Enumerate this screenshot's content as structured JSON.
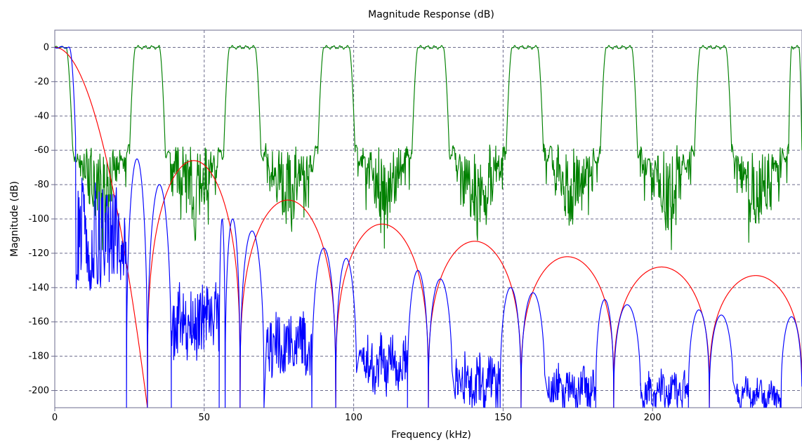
{
  "chart_data": {
    "type": "line",
    "title": "Magnitude Response (dB)",
    "xlabel": "Frequency (kHz)",
    "ylabel": "Magnitude (dB)",
    "xlim": [
      0,
      250
    ],
    "ylim": [
      -210,
      10
    ],
    "x_ticks": [
      0,
      50,
      100,
      150,
      200
    ],
    "y_ticks": [
      0,
      -20,
      -40,
      -60,
      -80,
      -100,
      -120,
      -140,
      -160,
      -180,
      -200
    ],
    "grid": true,
    "legend": "none",
    "colors": {
      "green": "#008000",
      "red": "#ff0000",
      "blue": "#0000ff",
      "grid": "#6b6b8c",
      "axes": "#6b6b8c"
    },
    "series": [
      {
        "color": "#008000",
        "description_values": "periodic bandpass images with passband at 0 dB",
        "passbands_khz": [
          [
            0,
            6
          ],
          [
            25,
            37
          ],
          [
            56.5,
            69
          ],
          [
            88,
            100.5
          ],
          [
            119.5,
            132
          ],
          [
            151,
            163.5
          ],
          [
            182.5,
            195
          ],
          [
            214,
            226.5
          ],
          [
            245.5,
            250
          ]
        ],
        "passband_level": 0,
        "stopband_floor_range": [
          -60,
          -115
        ]
      },
      {
        "color": "#ff0000",
        "lobe_peaks": [
          {
            "x": 0,
            "y": 0
          },
          {
            "x": 46,
            "y": -66
          },
          {
            "x": 77,
            "y": -89
          },
          {
            "x": 109,
            "y": -103
          },
          {
            "x": 140,
            "y": -113
          },
          {
            "x": 171,
            "y": -122
          },
          {
            "x": 203,
            "y": -128
          },
          {
            "x": 234,
            "y": -133
          }
        ],
        "nulls_khz": [
          31,
          62,
          94,
          125,
          156,
          187,
          219,
          250
        ]
      },
      {
        "color": "#0000ff",
        "lobe_peaks": [
          {
            "x": 0,
            "y": 0
          },
          {
            "x": 25,
            "y": -65
          },
          {
            "x": 38,
            "y": -80
          },
          {
            "x": 56,
            "y": -100
          },
          {
            "x": 69,
            "y": -107
          },
          {
            "x": 87,
            "y": -117
          },
          {
            "x": 100,
            "y": -123
          },
          {
            "x": 119,
            "y": -130
          },
          {
            "x": 132,
            "y": -135
          },
          {
            "x": 150,
            "y": -140
          },
          {
            "x": 163,
            "y": -143
          },
          {
            "x": 182,
            "y": -147
          },
          {
            "x": 195,
            "y": -150
          },
          {
            "x": 213,
            "y": -153
          },
          {
            "x": 226,
            "y": -156
          },
          {
            "x": 245,
            "y": -157
          }
        ],
        "stopband_clusters": [
          {
            "x_range": [
              7,
              24
            ],
            "y_range": [
              -60,
              -140
            ]
          },
          {
            "x_range": [
              39,
              55
            ],
            "y_range": [
              -125,
              -180
            ]
          },
          {
            "x_range": [
              71,
              86
            ],
            "y_range": [
              -145,
              -190
            ]
          },
          {
            "x_range": [
              102,
              118
            ],
            "y_range": [
              -160,
              -200
            ]
          },
          {
            "x_range": [
              134,
              149
            ],
            "y_range": [
              -170,
              -210
            ]
          },
          {
            "x_range": [
              165,
              181
            ],
            "y_range": [
              -180,
              -210
            ]
          },
          {
            "x_range": [
              196,
              212
            ],
            "y_range": [
              -185,
              -210
            ]
          },
          {
            "x_range": [
              228,
              243
            ],
            "y_range": [
              -190,
              -210
            ]
          }
        ]
      }
    ]
  }
}
